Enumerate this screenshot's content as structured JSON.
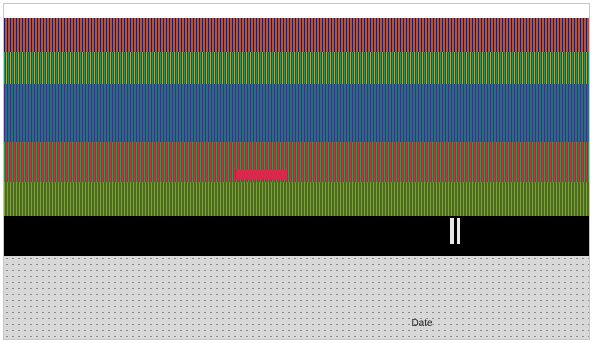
{
  "chart_data": {
    "type": "bar",
    "title": "",
    "xlabel": "Date",
    "ylabel": "",
    "categories": [],
    "series": [],
    "ylim": [],
    "grid": false,
    "legend": "top-right"
  },
  "colors": {
    "band_1": "#b0563e",
    "band_2": "#2e3d9c",
    "band_3": "#2b6b7e",
    "band_4": "#8d2f7a",
    "band_5": "#d8294a",
    "band_6": "#4e6b1f",
    "band_7": "#000000",
    "background": "#ffffff",
    "lower_panel": "#d2d2d2"
  }
}
